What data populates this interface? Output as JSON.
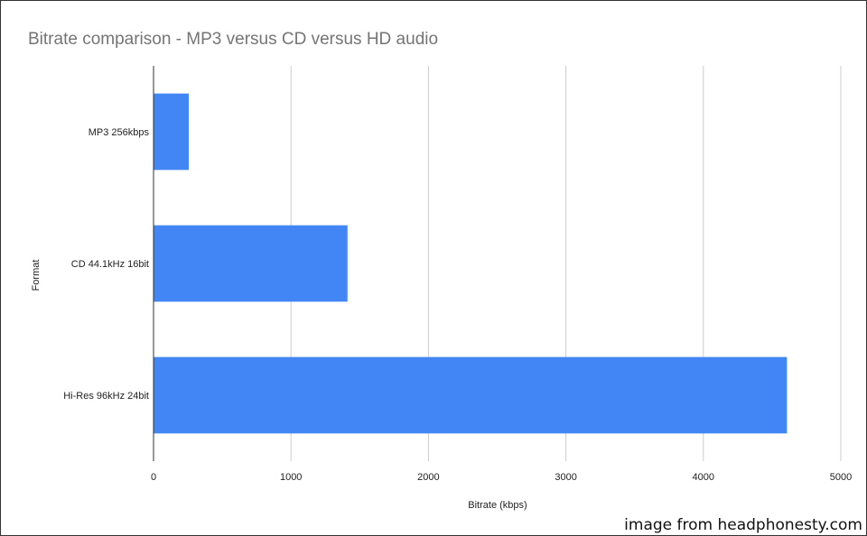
{
  "chart_data": {
    "type": "bar",
    "orientation": "horizontal",
    "title": "Bitrate comparison - MP3 versus CD versus HD audio",
    "xlabel": "Bitrate (kbps)",
    "ylabel": "Format",
    "categories": [
      "MP3 256kbps",
      "CD 44.1kHz 16bit",
      "Hi-Res 96kHz 24bit"
    ],
    "values": [
      256,
      1411,
      4608
    ],
    "xlim": [
      0,
      5000
    ],
    "xticks": [
      "0",
      "1000",
      "2000",
      "3000",
      "4000",
      "5000"
    ],
    "grid": true,
    "legend": "none",
    "bar_color": "#4285f4"
  },
  "credit": "image from headphonesty.com"
}
